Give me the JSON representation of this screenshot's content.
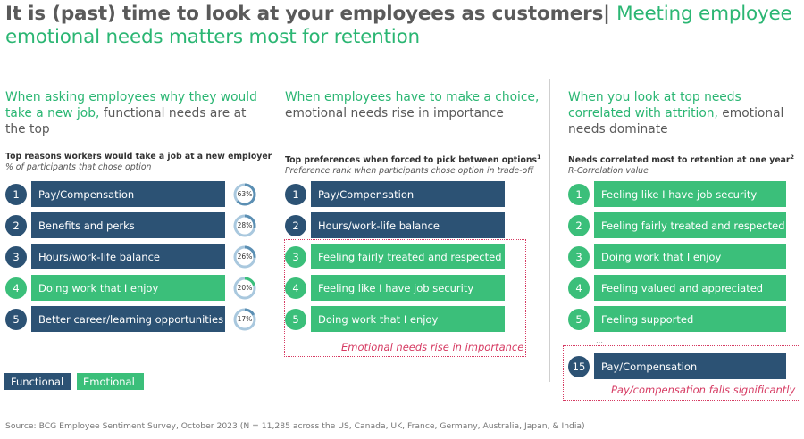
{
  "title": {
    "part1": "It is (past) time to look at your employees as customers|",
    "part2": "Meeting employee emotional needs matters most for retention"
  },
  "col1": {
    "head_green": "When asking employees why they would take a new job,",
    "head_gray": "functional needs are at the top",
    "sub_bold": "Top reasons workers would take a job at a new employer",
    "sub_italic": "% of participants that chose option",
    "items": [
      {
        "num": "1",
        "label": "Pay/Compensation",
        "kind": "functional",
        "pct": "63%",
        "value": 63
      },
      {
        "num": "2",
        "label": "Benefits and perks",
        "kind": "functional",
        "pct": "28%",
        "value": 28
      },
      {
        "num": "3",
        "label": "Hours/work-life balance",
        "kind": "functional",
        "pct": "26%",
        "value": 26
      },
      {
        "num": "4",
        "label": "Doing work that I enjoy",
        "kind": "emotional",
        "pct": "20%",
        "value": 20
      },
      {
        "num": "5",
        "label": "Better career/learning opportunities",
        "kind": "functional",
        "pct": "17%",
        "value": 17
      }
    ]
  },
  "col2": {
    "head_green": "When employees have to make a choice,",
    "head_gray": "emotional needs rise in importance",
    "sub_bold": "Top preferences when forced to pick between options",
    "sub_sup": "1",
    "sub_italic": "Preference rank when participants chose option in trade-off",
    "items": [
      {
        "num": "1",
        "label": "Pay/Compensation",
        "kind": "functional"
      },
      {
        "num": "2",
        "label": "Hours/work-life balance",
        "kind": "functional"
      },
      {
        "num": "3",
        "label": "Feeling fairly treated and respected",
        "kind": "emotional"
      },
      {
        "num": "4",
        "label": "Feeling like I have job security",
        "kind": "emotional"
      },
      {
        "num": "5",
        "label": "Doing work that I enjoy",
        "kind": "emotional"
      }
    ],
    "note": "Emotional needs rise in importance"
  },
  "col3": {
    "head_green": "When you look at top needs correlated with attrition,",
    "head_gray": "emotional needs dominate",
    "sub_bold": "Needs correlated most to retention at one year",
    "sub_sup": "2",
    "sub_italic": "R-Correlation value",
    "items": [
      {
        "num": "1",
        "label": "Feeling like I have job security",
        "kind": "emotional"
      },
      {
        "num": "2",
        "label": "Feeling fairly treated and respected",
        "kind": "emotional"
      },
      {
        "num": "3",
        "label": "Doing work that I enjoy",
        "kind": "emotional"
      },
      {
        "num": "4",
        "label": "Feeling valued and appreciated",
        "kind": "emotional"
      },
      {
        "num": "5",
        "label": "Feeling supported",
        "kind": "emotional"
      }
    ],
    "ellipsis": "…",
    "extra": {
      "num": "15",
      "label": "Pay/Compensation",
      "kind": "functional"
    },
    "note": "Pay/compensation falls significantly"
  },
  "legend": {
    "functional": "Functional",
    "emotional": "Emotional"
  },
  "footer": "Source: BCG Employee Sentiment Survey, October 2023 (N = 11,285 across the US, Canada, UK, France, Germany, Australia, Japan, & India)",
  "colors": {
    "functional": "#2c5274",
    "emotional": "#3bbf7a",
    "accent": "#2bb673",
    "highlight": "#d63a62"
  }
}
